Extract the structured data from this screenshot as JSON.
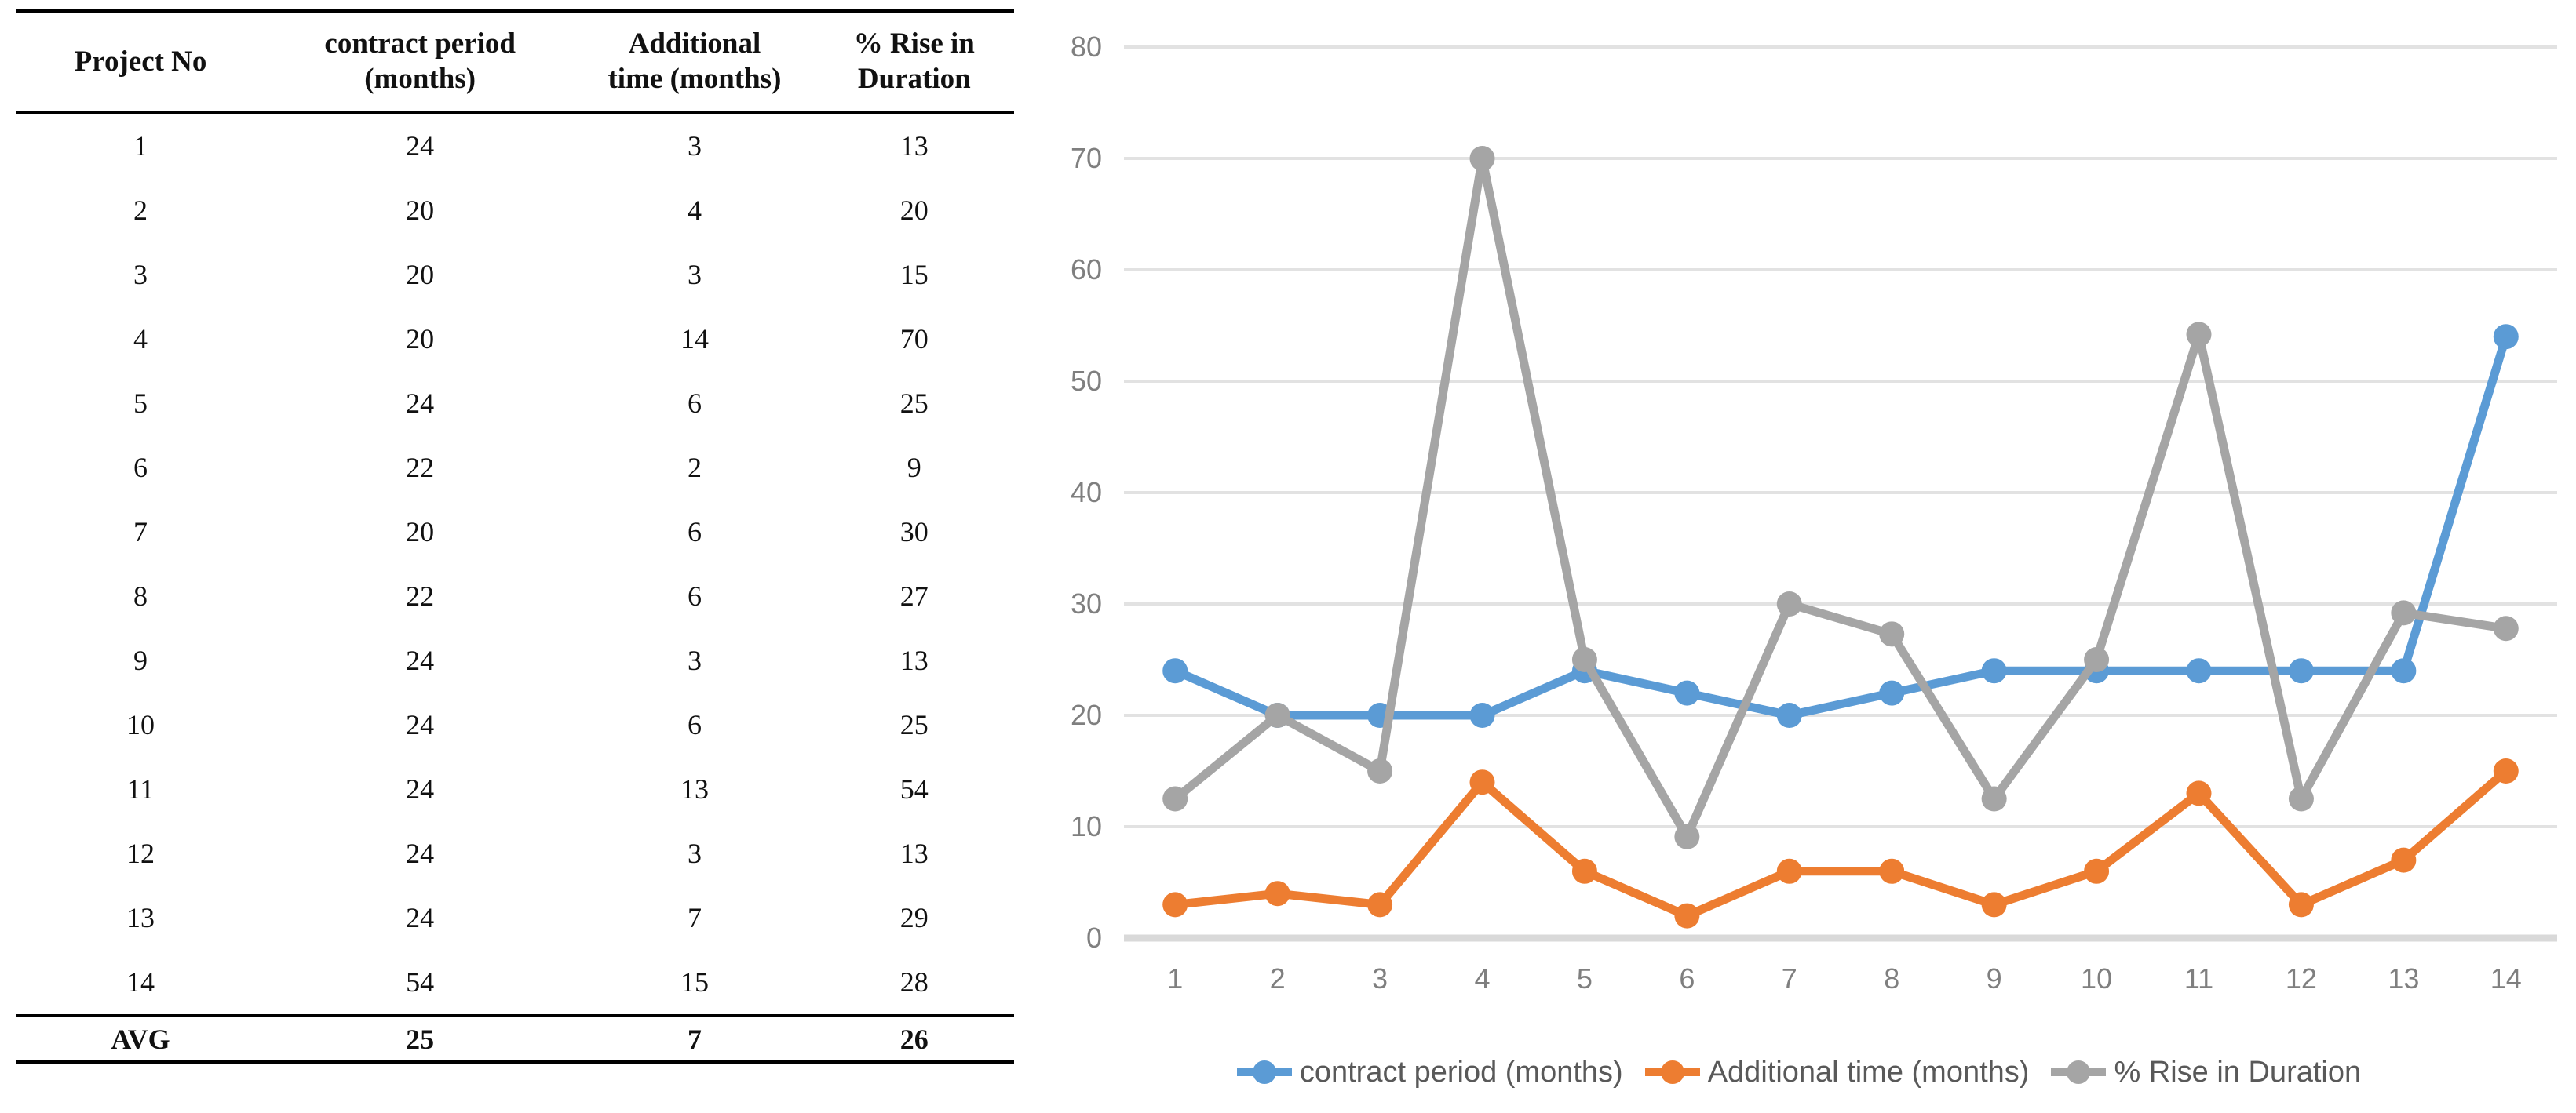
{
  "table": {
    "headers": [
      [
        "Project No"
      ],
      [
        "contract period",
        "(months)"
      ],
      [
        "Additional",
        "time (months)"
      ],
      [
        "% Rise in",
        "Duration"
      ]
    ],
    "rows": [
      [
        "1",
        "24",
        "3",
        "13"
      ],
      [
        "2",
        "20",
        "4",
        "20"
      ],
      [
        "3",
        "20",
        "3",
        "15"
      ],
      [
        "4",
        "20",
        "14",
        "70"
      ],
      [
        "5",
        "24",
        "6",
        "25"
      ],
      [
        "6",
        "22",
        "2",
        "9"
      ],
      [
        "7",
        "20",
        "6",
        "30"
      ],
      [
        "8",
        "22",
        "6",
        "27"
      ],
      [
        "9",
        "24",
        "3",
        "13"
      ],
      [
        "10",
        "24",
        "6",
        "25"
      ],
      [
        "11",
        "24",
        "13",
        "54"
      ],
      [
        "12",
        "24",
        "3",
        "13"
      ],
      [
        "13",
        "24",
        "7",
        "29"
      ],
      [
        "14",
        "54",
        "15",
        "28"
      ]
    ],
    "avg_row": [
      "AVG",
      "25",
      "7",
      "26"
    ]
  },
  "chart_data": {
    "type": "line",
    "categories": [
      "1",
      "2",
      "3",
      "4",
      "5",
      "6",
      "7",
      "8",
      "9",
      "10",
      "11",
      "12",
      "13",
      "14"
    ],
    "series": [
      {
        "name": "contract period (months)",
        "color": "#5B9BD5",
        "values": [
          24,
          20,
          20,
          20,
          24,
          22,
          20,
          22,
          24,
          24,
          24,
          24,
          24,
          54
        ]
      },
      {
        "name": "Additional time (months)",
        "color": "#ED7D31",
        "values": [
          3,
          4,
          3,
          14,
          6,
          2,
          6,
          6,
          3,
          6,
          13,
          3,
          7,
          15
        ]
      },
      {
        "name": "% Rise in Duration",
        "color": "#A5A5A5",
        "values": [
          12.5,
          20,
          15,
          70,
          25,
          9.1,
          30,
          27.3,
          12.5,
          25,
          54.2,
          12.5,
          29.2,
          27.8
        ]
      }
    ],
    "title": "",
    "xlabel": "",
    "ylabel": "",
    "ylim": [
      0,
      80
    ],
    "ytick_step": 10,
    "grid": true,
    "legend_position": "bottom",
    "axis_label_color": "#7F7F7F",
    "gridline_color": "#E2E2E2",
    "zero_line_color": "#D9D9D9",
    "legend_text_color": "#595959"
  }
}
